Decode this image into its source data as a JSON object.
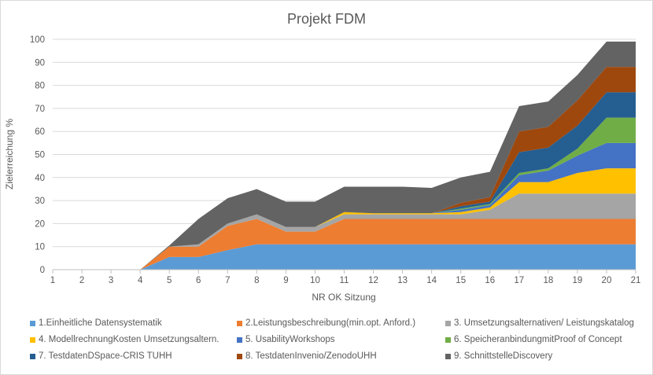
{
  "chart_data": {
    "type": "area",
    "stacked": true,
    "title": "Projekt FDM",
    "xlabel": "NR OK Sitzung",
    "ylabel": "Zielerreichung %",
    "x": [
      1,
      2,
      3,
      4,
      5,
      6,
      7,
      8,
      9,
      10,
      11,
      12,
      13,
      14,
      15,
      16,
      17,
      18,
      19,
      20,
      21
    ],
    "ylim": [
      0,
      100
    ],
    "yticks": [
      0,
      10,
      20,
      30,
      40,
      50,
      60,
      70,
      80,
      90,
      100
    ],
    "grid": true,
    "legend_position": "bottom",
    "series": [
      {
        "name": "1.Einheitliche Datensystematik",
        "color": "#5B9BD5",
        "values": [
          0,
          0,
          0,
          0,
          5.5,
          5.5,
          8.5,
          11,
          11,
          11,
          11,
          11,
          11,
          11,
          11,
          11,
          11,
          11,
          11,
          11,
          11
        ]
      },
      {
        "name": "2.Leistungsbeschreibung(min.opt. Anford.)",
        "color": "#ED7D31",
        "values": [
          0,
          0,
          0,
          0,
          4.5,
          4.5,
          10.5,
          11,
          5.5,
          5.5,
          11,
          11,
          11,
          11,
          11,
          11,
          11,
          11,
          11,
          11,
          11
        ]
      },
      {
        "name": "3. Umsetzungsalternativen/ Leistungskatalog",
        "color": "#A5A5A5",
        "values": [
          0,
          0,
          0,
          0,
          0,
          1,
          1,
          2,
          2,
          2,
          2,
          2,
          2,
          2,
          2,
          4,
          11,
          11,
          11,
          11,
          11
        ]
      },
      {
        "name": "4. ModellrechnungKosten Umsetzungsaltern.",
        "color": "#FFC000",
        "values": [
          0,
          0,
          0,
          0,
          0,
          0,
          0,
          0,
          0,
          0,
          1,
          0.5,
          0.5,
          0.5,
          1,
          1,
          5,
          5,
          9,
          11,
          11
        ]
      },
      {
        "name": "5. UsabilityWorkshops",
        "color": "#4472C4",
        "values": [
          0,
          0,
          0,
          0,
          0,
          0,
          0,
          0,
          0,
          0,
          0,
          0,
          0,
          0,
          1,
          1,
          3,
          5,
          7.5,
          11,
          11
        ]
      },
      {
        "name": "6. SpeicheranbindungmitProof of Concept",
        "color": "#70AD47",
        "values": [
          0,
          0,
          0,
          0,
          0,
          0,
          0,
          0,
          0,
          0,
          0,
          0,
          0,
          0,
          0.5,
          0.5,
          1,
          1,
          3,
          11,
          11
        ]
      },
      {
        "name": "7. TestdatenDSpace-CRIS TUHH",
        "color": "#255E91",
        "values": [
          0,
          0,
          0,
          0,
          0,
          0,
          0,
          0,
          0,
          0,
          0,
          0,
          0,
          0,
          1,
          1,
          9,
          9,
          10,
          11,
          11
        ]
      },
      {
        "name": "8. TestdatenInvenio/ZenodoUHH",
        "color": "#9E480E",
        "values": [
          0,
          0,
          0,
          0,
          0,
          0,
          0,
          0,
          0,
          0,
          0,
          0,
          0,
          0,
          1.5,
          2,
          9,
          9,
          11,
          11,
          11
        ]
      },
      {
        "name": "9. SchnittstelleDiscovery",
        "color": "#636363",
        "values": [
          0,
          0,
          0,
          0,
          0.5,
          11,
          11,
          11,
          11,
          11,
          11,
          11.5,
          11.5,
          11,
          11,
          11,
          11,
          11,
          11,
          11,
          11
        ]
      }
    ]
  }
}
